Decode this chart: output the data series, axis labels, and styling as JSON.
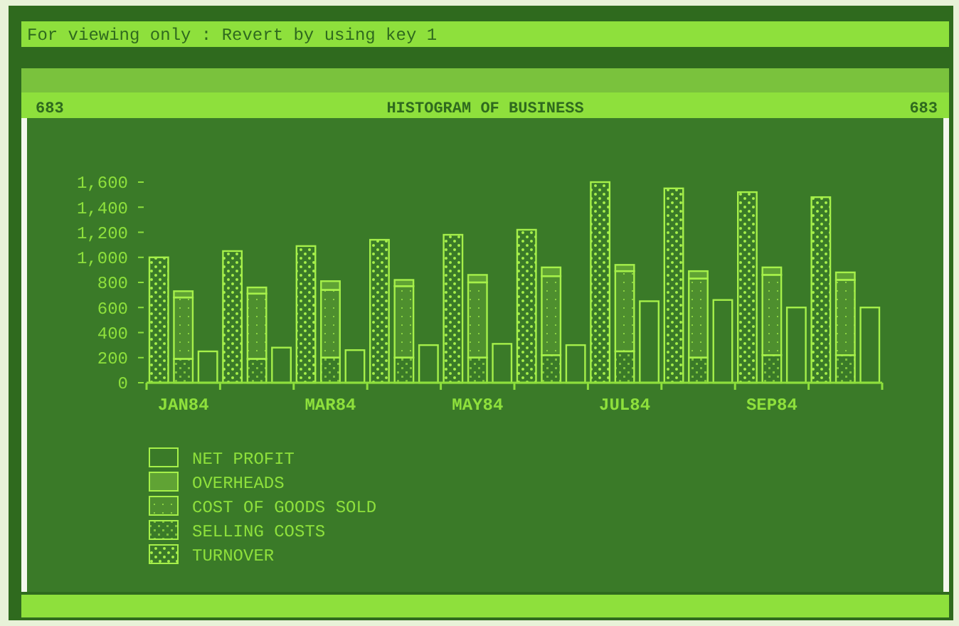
{
  "chart_data": {
    "type": "bar",
    "title": "HISTOGRAM OF BUSINESS",
    "annotations": [
      "For viewing only :  Revert by using key 1",
      "683",
      "683"
    ],
    "categories": [
      null,
      "JAN84",
      null,
      null,
      null,
      null,
      null,
      "MAR84",
      null,
      null,
      null,
      null,
      null,
      "MAY84",
      null,
      null,
      null,
      null,
      null,
      "JUL84",
      null,
      null,
      null,
      null,
      null,
      "SEP84",
      null,
      null,
      null,
      null
    ],
    "stacked": true,
    "series": [
      {
        "name": "TURNOVER",
        "color": "#a6f04a",
        "values": [
          1000,
          null,
          null,
          1050,
          null,
          null,
          1090,
          null,
          null,
          1140,
          null,
          null,
          1180,
          null,
          null,
          1220,
          null,
          null,
          1600,
          null,
          null,
          1550,
          null,
          null,
          1520,
          null,
          null,
          1480,
          null,
          null
        ]
      },
      {
        "name": "SELLING COSTS",
        "color": "#a6f04a",
        "values": [
          null,
          190,
          null,
          null,
          190,
          null,
          null,
          200,
          null,
          null,
          200,
          null,
          null,
          200,
          null,
          null,
          220,
          null,
          null,
          250,
          null,
          null,
          200,
          null,
          null,
          220,
          null,
          null,
          220,
          null
        ]
      },
      {
        "name": "COST OF GOODS SOLD",
        "color": "#a6f04a",
        "values": [
          null,
          490,
          null,
          null,
          520,
          null,
          null,
          540,
          null,
          null,
          570,
          null,
          null,
          600,
          null,
          null,
          630,
          null,
          null,
          640,
          null,
          null,
          630,
          null,
          null,
          640,
          null,
          null,
          600,
          null
        ]
      },
      {
        "name": "OVERHEADS",
        "color": "#a6f04a",
        "values": [
          null,
          50,
          null,
          null,
          50,
          null,
          null,
          70,
          null,
          null,
          50,
          null,
          null,
          60,
          null,
          null,
          70,
          null,
          null,
          50,
          null,
          null,
          60,
          null,
          null,
          60,
          null,
          null,
          60,
          null
        ]
      },
      {
        "name": "NET PROFIT",
        "color": "#a6f04a",
        "values": [
          null,
          null,
          250,
          null,
          null,
          280,
          null,
          null,
          260,
          null,
          null,
          300,
          null,
          null,
          310,
          null,
          null,
          300,
          null,
          null,
          650,
          null,
          null,
          660,
          null,
          null,
          600,
          null,
          null,
          600
        ]
      }
    ],
    "ylim": [
      0,
      1600
    ],
    "yticks": [
      0,
      200,
      400,
      600,
      800,
      {
        "value": 1000,
        "label": "1,000"
      },
      {
        "value": 1200,
        "label": "1,200"
      },
      {
        "value": 1400,
        "label": "1,400"
      },
      {
        "value": 1600,
        "label": "1,600"
      }
    ],
    "legend": "bottom left"
  }
}
